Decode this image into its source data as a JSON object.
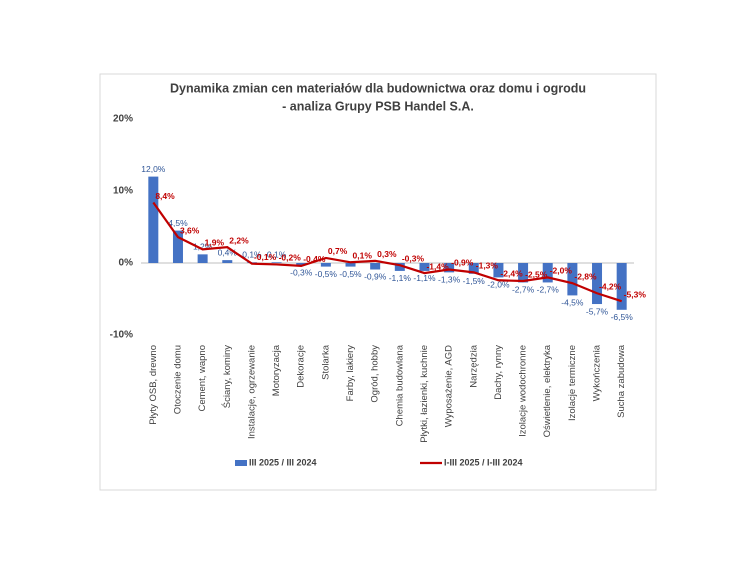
{
  "chart_data": {
    "type": "bar_line",
    "title": "Dynamika zmian cen materiałów dla budownictwa oraz domu i ogrodu",
    "subtitle": "- analiza Grupy PSB Handel S.A.",
    "categories": [
      "Płyty OSB, drewno",
      "Otoczenie domu",
      "Cement, wapno",
      "Ściany, kominy",
      "Instalacje, ogrzewanie",
      "Motoryzacja",
      "Dekoracje",
      "Stolarka",
      "Farby, lakiery",
      "Ogród, hobby",
      "Chemia budowlana",
      "Płytki, łazienki, kuchnie",
      "Wyposażenie, AGD",
      "Narzędzia",
      "Dachy, rynny",
      "Izolacje wodochronne",
      "Oświetlenie, elektryka",
      "Izolacje termiczne",
      "Wykończenia",
      "Sucha zabudowa"
    ],
    "series": [
      {
        "name": "III 2025 / III 2024",
        "type": "bar",
        "color": "#4472c4",
        "values": [
          12.0,
          4.5,
          1.2,
          0.4,
          0.1,
          0.1,
          -0.3,
          -0.5,
          -0.5,
          -0.9,
          -1.1,
          -1.1,
          -1.3,
          -1.5,
          -2.0,
          -2.7,
          -2.7,
          -4.5,
          -5.7,
          -6.5
        ],
        "value_labels": [
          "12,0%",
          "4,5%",
          "1,2%",
          "0,4%",
          "0,1%",
          "0,1%",
          "-0,3%",
          "-0,5%",
          "-0,5%",
          "-0,9%",
          "-1,1%",
          "-1,1%",
          "-1,3%",
          "-1,5%",
          "-2,0%",
          "-2,7%",
          "-2,7%",
          "-4,5%",
          "-5,7%",
          "-6,5%"
        ]
      },
      {
        "name": "I-III 2025 / I-III 2024",
        "type": "line",
        "color": "#c00000",
        "values": [
          8.4,
          3.6,
          1.9,
          2.2,
          -0.1,
          -0.2,
          -0.4,
          0.7,
          0.1,
          0.3,
          -0.3,
          -1.4,
          -0.9,
          -1.3,
          -2.4,
          -2.5,
          -2.0,
          -2.8,
          -4.2,
          -5.3
        ],
        "value_labels": [
          "8,4%",
          "3,6%",
          "1,9%",
          "2,2%",
          "-0,1%",
          "-0,2%",
          "-0,4%",
          "0,7%",
          "0,1%",
          "0,3%",
          "-0,3%",
          "-1,4%",
          "-0,9%",
          "-1,3%",
          "-2,4%",
          "-2,5%",
          "-2,0%",
          "-2,8%",
          "-4,2%",
          "-5,3%"
        ]
      }
    ],
    "ylim": [
      -10,
      20
    ],
    "yticks": [
      {
        "value": -10,
        "label": "-10%"
      },
      {
        "value": 0,
        "label": "0%"
      },
      {
        "value": 10,
        "label": "10%"
      },
      {
        "value": 20,
        "label": "20%"
      }
    ],
    "legend": "bottom"
  }
}
